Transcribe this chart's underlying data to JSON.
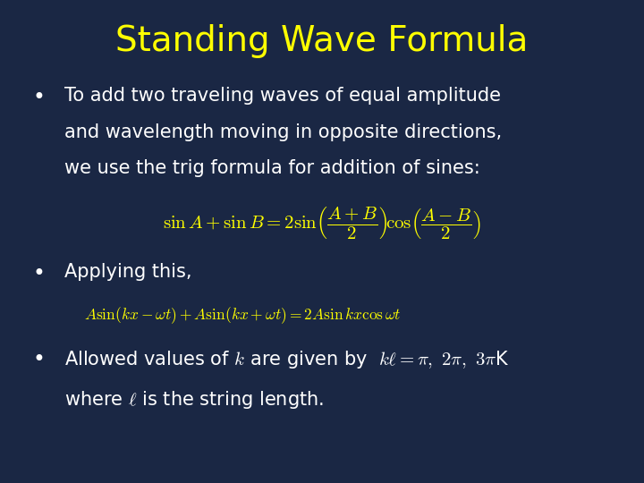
{
  "background_color": "#1a2744",
  "title": "Standing Wave Formula",
  "title_color": "#ffff00",
  "title_fontsize": 28,
  "text_color": "#ffffff",
  "formula_color": "#ffff00",
  "bullet1_line1": "To add two traveling waves of equal amplitude",
  "bullet1_line2": "and wavelength moving in opposite directions,",
  "bullet1_line3": "we use the trig formula for addition of sines:",
  "formula1": "$\\sin A + \\sin B = 2\\sin\\!\\left(\\dfrac{A+B}{2}\\right)\\!\\cos\\!\\left(\\dfrac{A-B}{2}\\right)$",
  "bullet2": "Applying this,",
  "formula2": "$A\\sin(kx-\\omega t) + A\\sin(kx+\\omega t) = 2A\\sin kx\\cos\\omega t$",
  "bullet3_main": "Allowed values of $k$ are given by",
  "bullet3_formula": "$k\\ell = \\pi,\\ 2\\pi,\\ 3\\pi$K",
  "bullet4": "where $\\ell$ is the string length."
}
